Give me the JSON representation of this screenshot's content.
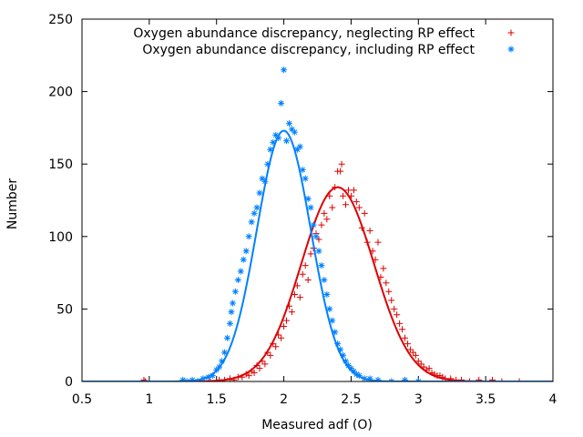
{
  "chart_data": {
    "type": "scatter",
    "title": "",
    "xlabel": "Measured adf (O)",
    "ylabel": "Number",
    "xlim": [
      0.5,
      4
    ],
    "ylim": [
      0,
      250
    ],
    "xticks": [
      "0.5",
      "1",
      "1.5",
      "2",
      "2.5",
      "3",
      "3.5",
      "4"
    ],
    "yticks": [
      "0",
      "50",
      "100",
      "150",
      "200",
      "250"
    ],
    "grid": false,
    "legend_position": "top-right",
    "series": [
      {
        "name": "Oxygen abundance discrepancy, neglecting RP effect",
        "marker": "plus",
        "color": "#dd0000",
        "fit": {
          "type": "gaussian",
          "amplitude": 134,
          "mean": 2.4,
          "sigma": 0.27
        },
        "points": [
          [
            0.96,
            1
          ],
          [
            0.97,
            0
          ],
          [
            1.45,
            0
          ],
          [
            1.52,
            1
          ],
          [
            1.56,
            1
          ],
          [
            1.6,
            2
          ],
          [
            1.63,
            1
          ],
          [
            1.66,
            3
          ],
          [
            1.69,
            3
          ],
          [
            1.72,
            5
          ],
          [
            1.74,
            4
          ],
          [
            1.76,
            7
          ],
          [
            1.78,
            6
          ],
          [
            1.8,
            11
          ],
          [
            1.82,
            9
          ],
          [
            1.84,
            14
          ],
          [
            1.86,
            12
          ],
          [
            1.88,
            20
          ],
          [
            1.9,
            18
          ],
          [
            1.92,
            26
          ],
          [
            1.94,
            24
          ],
          [
            1.96,
            32
          ],
          [
            1.98,
            30
          ],
          [
            2.0,
            38
          ],
          [
            2.02,
            42
          ],
          [
            2.04,
            52
          ],
          [
            2.06,
            48
          ],
          [
            2.08,
            60
          ],
          [
            2.1,
            66
          ],
          [
            2.12,
            58
          ],
          [
            2.14,
            74
          ],
          [
            2.16,
            80
          ],
          [
            2.18,
            70
          ],
          [
            2.2,
            88
          ],
          [
            2.22,
            92
          ],
          [
            2.24,
            102
          ],
          [
            2.26,
            98
          ],
          [
            2.28,
            108
          ],
          [
            2.3,
            116
          ],
          [
            2.32,
            112
          ],
          [
            2.34,
            128
          ],
          [
            2.36,
            120
          ],
          [
            2.38,
            134
          ],
          [
            2.4,
            145
          ],
          [
            2.42,
            145
          ],
          [
            2.43,
            150
          ],
          [
            2.44,
            128
          ],
          [
            2.46,
            122
          ],
          [
            2.48,
            132
          ],
          [
            2.5,
            128
          ],
          [
            2.52,
            132
          ],
          [
            2.54,
            124
          ],
          [
            2.56,
            120
          ],
          [
            2.58,
            106
          ],
          [
            2.6,
            116
          ],
          [
            2.62,
            96
          ],
          [
            2.64,
            104
          ],
          [
            2.66,
            90
          ],
          [
            2.68,
            84
          ],
          [
            2.7,
            96
          ],
          [
            2.72,
            72
          ],
          [
            2.74,
            78
          ],
          [
            2.76,
            68
          ],
          [
            2.78,
            62
          ],
          [
            2.8,
            56
          ],
          [
            2.82,
            50
          ],
          [
            2.84,
            46
          ],
          [
            2.86,
            40
          ],
          [
            2.88,
            36
          ],
          [
            2.9,
            30
          ],
          [
            2.92,
            26
          ],
          [
            2.94,
            22
          ],
          [
            2.96,
            20
          ],
          [
            2.98,
            18
          ],
          [
            3.0,
            14
          ],
          [
            3.02,
            12
          ],
          [
            3.04,
            10
          ],
          [
            3.06,
            8
          ],
          [
            3.08,
            9
          ],
          [
            3.1,
            6
          ],
          [
            3.12,
            5
          ],
          [
            3.14,
            4
          ],
          [
            3.16,
            4
          ],
          [
            3.18,
            3
          ],
          [
            3.2,
            2
          ],
          [
            3.24,
            2
          ],
          [
            3.28,
            1
          ],
          [
            3.32,
            1
          ],
          [
            3.38,
            0
          ],
          [
            3.45,
            1
          ],
          [
            3.55,
            1
          ],
          [
            3.62,
            0
          ],
          [
            3.75,
            0
          ]
        ]
      },
      {
        "name": "Oxygen abundance discrepancy, including RP effect",
        "marker": "star",
        "color": "#0080ff",
        "fit": {
          "type": "gaussian",
          "amplitude": 173,
          "mean": 2.0,
          "sigma": 0.2
        },
        "points": [
          [
            1.25,
            1
          ],
          [
            1.28,
            0
          ],
          [
            1.32,
            1
          ],
          [
            1.36,
            0
          ],
          [
            1.4,
            2
          ],
          [
            1.44,
            3
          ],
          [
            1.47,
            4
          ],
          [
            1.5,
            8
          ],
          [
            1.52,
            10
          ],
          [
            1.54,
            14
          ],
          [
            1.56,
            20
          ],
          [
            1.58,
            30
          ],
          [
            1.6,
            40
          ],
          [
            1.61,
            48
          ],
          [
            1.62,
            54
          ],
          [
            1.64,
            62
          ],
          [
            1.66,
            70
          ],
          [
            1.68,
            76
          ],
          [
            1.7,
            84
          ],
          [
            1.72,
            90
          ],
          [
            1.74,
            100
          ],
          [
            1.76,
            110
          ],
          [
            1.78,
            116
          ],
          [
            1.8,
            120
          ],
          [
            1.82,
            130
          ],
          [
            1.84,
            140
          ],
          [
            1.86,
            138
          ],
          [
            1.88,
            150
          ],
          [
            1.9,
            160
          ],
          [
            1.92,
            165
          ],
          [
            1.94,
            170
          ],
          [
            1.96,
            168
          ],
          [
            1.98,
            192
          ],
          [
            2.0,
            215
          ],
          [
            2.02,
            166
          ],
          [
            2.04,
            178
          ],
          [
            2.06,
            174
          ],
          [
            2.08,
            172
          ],
          [
            2.1,
            160
          ],
          [
            2.12,
            162
          ],
          [
            2.14,
            146
          ],
          [
            2.16,
            140
          ],
          [
            2.18,
            126
          ],
          [
            2.2,
            120
          ],
          [
            2.22,
            108
          ],
          [
            2.24,
            100
          ],
          [
            2.26,
            90
          ],
          [
            2.28,
            80
          ],
          [
            2.3,
            70
          ],
          [
            2.32,
            60
          ],
          [
            2.34,
            50
          ],
          [
            2.36,
            42
          ],
          [
            2.38,
            34
          ],
          [
            2.4,
            26
          ],
          [
            2.42,
            22
          ],
          [
            2.44,
            18
          ],
          [
            2.46,
            14
          ],
          [
            2.48,
            11
          ],
          [
            2.5,
            9
          ],
          [
            2.52,
            7
          ],
          [
            2.54,
            5
          ],
          [
            2.56,
            4
          ],
          [
            2.6,
            2
          ],
          [
            2.64,
            2
          ],
          [
            2.7,
            1
          ],
          [
            2.8,
            0
          ],
          [
            2.9,
            1
          ],
          [
            3.0,
            0
          ]
        ]
      }
    ]
  }
}
